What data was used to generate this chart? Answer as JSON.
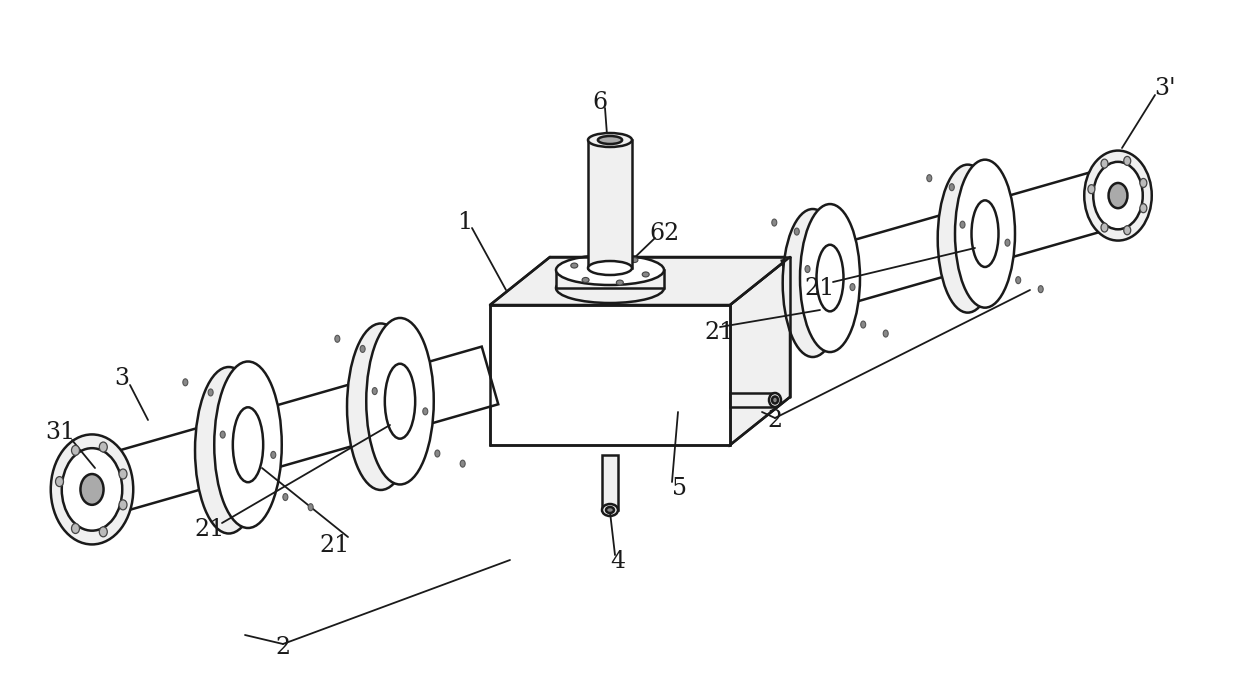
{
  "bg_color": "#ffffff",
  "lc": "#1a1a1a",
  "lw": 1.8,
  "figsize": [
    12.39,
    6.88
  ],
  "dpi": 100,
  "fs": 17
}
